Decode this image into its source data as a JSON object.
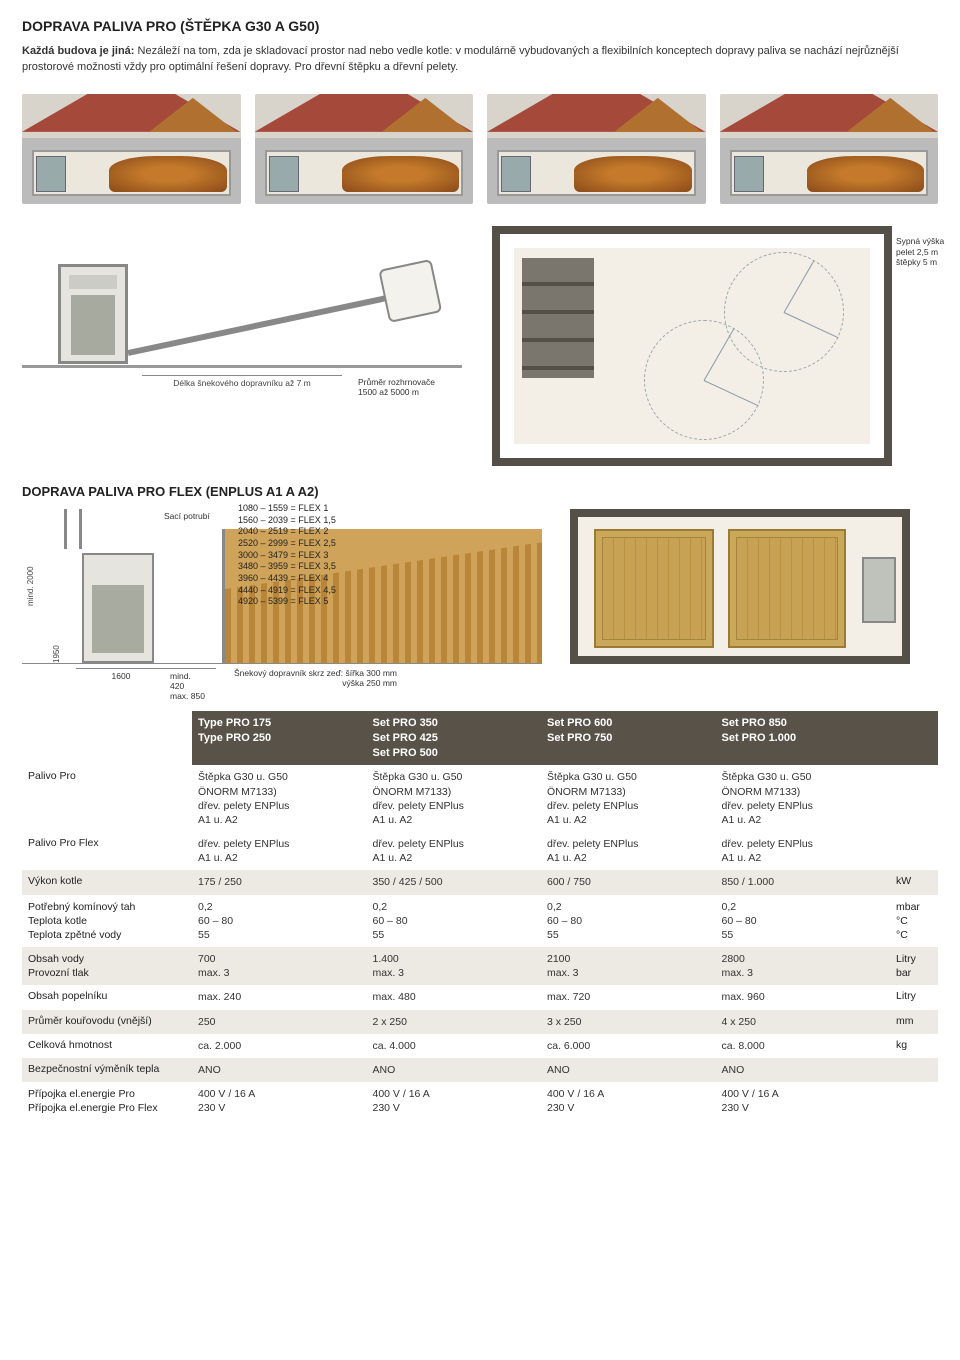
{
  "colors": {
    "header_bg": "#585248",
    "band_bg": "#eceae3"
  },
  "title1": "DOPRAVA PALIVA PRO (ŠTĚPKA G30 A G50)",
  "intro_bold": "Každá budova je jiná:",
  "intro_rest": " Nezáleží na tom, zda je skladovací prostor nad nebo vedle kotle: v modulárně vybudovaných a flexibilních konceptech dopravy paliva se nachází nejrůznější prostorové možnosti vždy pro optimální řešení dopravy. Pro dřevní štěpku a dřevní pelety.",
  "cs_auger_len": "Délka šnekového dopravníku až 7 m",
  "silo_h_line1": "Sypná výška",
  "silo_h_line2": "pelet 2,5 m",
  "silo_h_line3": "štěpky 5 m",
  "silo_d_line1": "Průměr rozhrnovače",
  "silo_d_line2": "1500 až 5000 m",
  "title2": "DOPRAVA PALIVA PRO FLEX (ENPLUS A1 A A2)",
  "flex_vert_label": "mind. 2000",
  "flex_vert_label2": "1950",
  "flex_sac": "Sací potrubí",
  "flex_ranges": [
    "1080 – 1559 = FLEX 1",
    "1560 – 2039 = FLEX 1,5",
    "2040 – 2519 = FLEX 2",
    "2520 – 2999 = FLEX 2,5",
    "3000 – 3479 = FLEX 3",
    "3480 – 3959 = FLEX 3,5",
    "3960 – 4439 = FLEX 4",
    "4440 – 4919 = FLEX 4,5",
    "4920 – 5399 = FLEX 5"
  ],
  "flex_dim_1600": "1600",
  "flex_dim_min": "mind.\n420",
  "flex_dim_max": "max. 850",
  "flex_dim_note_l1": "Šnekový dopravník skrz zeď: šířka 300 mm",
  "flex_dim_note_l2": "výška 250 mm",
  "table": {
    "head": [
      [
        "Type PRO 175",
        "Type PRO 250"
      ],
      [
        "Set PRO 350",
        "Set PRO 425",
        "Set PRO 500"
      ],
      [
        "Set PRO 600",
        "Set PRO 750"
      ],
      [
        "Set PRO 850",
        "Set PRO 1.000"
      ]
    ],
    "rows": [
      {
        "label": "Palivo Pro",
        "cells": [
          [
            "Štěpka G30 u. G50",
            "ÖNORM M7133)",
            "dřev. pelety ENPlus",
            "A1 u. A2"
          ],
          [
            "Štěpka G30 u. G50",
            "ÖNORM M7133)",
            "dřev. pelety ENPlus",
            "A1 u. A2"
          ],
          [
            "Štěpka  G30 u. G50",
            "ÖNORM M7133)",
            "dřev. pelety ENPlus",
            "A1 u. A2"
          ],
          [
            "Štěpka  G30 u. G50",
            "ÖNORM M7133)",
            "dřev. pelety ENPlus",
            "A1 u. A2"
          ]
        ],
        "unit": ""
      },
      {
        "label": "Palivo Pro Flex",
        "cells": [
          [
            "dřev. pelety ENPlus",
            "A1 u. A2"
          ],
          [
            "dřev. pelety ENPlus",
            "A1 u. A2"
          ],
          [
            "dřev. pelety ENPlus",
            "A1 u. A2"
          ],
          [
            "dřev. pelety ENPlus",
            "A1 u. A2"
          ]
        ],
        "unit": ""
      },
      {
        "label": "Výkon kotle",
        "cells": [
          [
            "175 / 250"
          ],
          [
            "350 / 425 / 500"
          ],
          [
            "600 / 750"
          ],
          [
            "850 / 1.000"
          ]
        ],
        "unit": "kW",
        "band": true
      },
      {
        "labels": [
          "Potřebný komínový tah",
          "Teplota kotle",
          "Teplota zpětné vody"
        ],
        "cells": [
          [
            "0,2",
            "60 – 80",
            "55"
          ],
          [
            "0,2",
            "60 – 80",
            "55"
          ],
          [
            "0,2",
            "60 – 80",
            "55"
          ],
          [
            "0,2",
            "60 – 80",
            "55"
          ]
        ],
        "units": [
          "mbar",
          "°C",
          "°C"
        ]
      },
      {
        "labels": [
          "Obsah vody",
          "Provozní tlak"
        ],
        "cells": [
          [
            "700",
            "max. 3"
          ],
          [
            "1.400",
            "max. 3"
          ],
          [
            "2100",
            "max. 3"
          ],
          [
            "2800",
            "max. 3"
          ]
        ],
        "units": [
          "Litry",
          "bar"
        ],
        "band": true
      },
      {
        "label": "Obsah popelníku",
        "cells": [
          [
            "max. 240"
          ],
          [
            "max. 480"
          ],
          [
            "max. 720"
          ],
          [
            "max. 960"
          ]
        ],
        "unit": "Litry"
      },
      {
        "label": "Průměr kouřovodu (vnější)",
        "cells": [
          [
            "250"
          ],
          [
            "2 x 250"
          ],
          [
            "3 x 250"
          ],
          [
            "4 x 250"
          ]
        ],
        "unit": "mm",
        "band": true
      },
      {
        "label": "Celková hmotnost",
        "cells": [
          [
            "ca. 2.000"
          ],
          [
            "ca. 4.000"
          ],
          [
            "ca. 6.000"
          ],
          [
            "ca. 8.000"
          ]
        ],
        "unit": "kg"
      },
      {
        "label": "Bezpečnostní výměník tepla",
        "cells": [
          [
            "ANO"
          ],
          [
            "ANO"
          ],
          [
            "ANO"
          ],
          [
            "ANO"
          ]
        ],
        "unit": "",
        "band": true
      },
      {
        "labels": [
          "Přípojka el.energie Pro",
          "Přípojka el.energie Pro Flex"
        ],
        "cells": [
          [
            "400 V / 16 A",
            "230 V"
          ],
          [
            "400 V / 16 A",
            "230 V"
          ],
          [
            "400 V / 16 A",
            "230 V"
          ],
          [
            "400 V / 16 A",
            "230 V"
          ]
        ],
        "units": [
          "",
          ""
        ]
      }
    ]
  }
}
